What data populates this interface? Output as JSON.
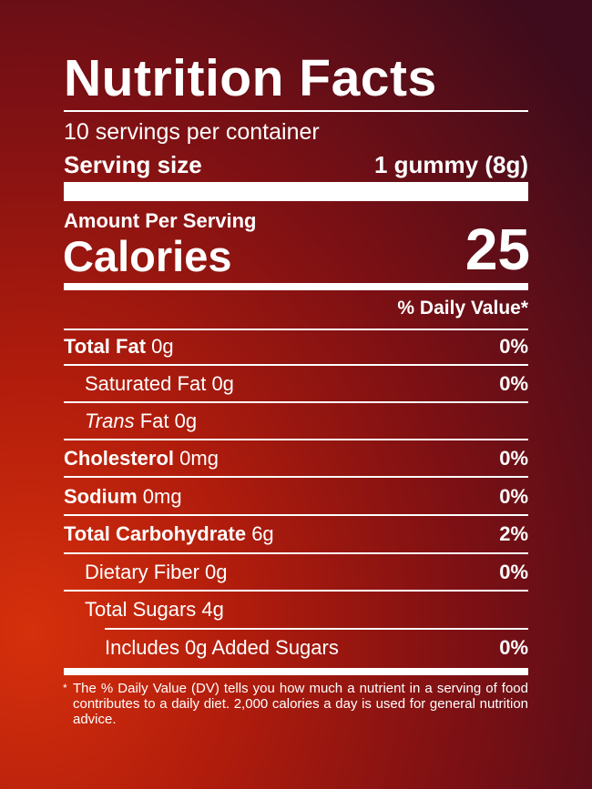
{
  "title": "Nutrition Facts",
  "servings_per_container": "10 servings per container",
  "serving_size_label": "Serving size",
  "serving_size_value": "1 gummy (8g)",
  "amount_per_serving": "Amount Per Serving",
  "calories_label": "Calories",
  "calories_value": "25",
  "daily_value_header": "% Daily Value*",
  "nutrients": [
    {
      "name": "Total Fat",
      "amount": "0g",
      "dv": "0%"
    },
    {
      "name": "Saturated Fat",
      "amount": "0g",
      "dv": "0%"
    },
    {
      "name": "Trans",
      "name_suffix": "Fat",
      "amount": "0g",
      "dv": ""
    },
    {
      "name": "Cholesterol",
      "amount": "0mg",
      "dv": "0%"
    },
    {
      "name": "Sodium",
      "amount": "0mg",
      "dv": "0%"
    },
    {
      "name": "Total Carbohydrate",
      "amount": "6g",
      "dv": "2%"
    },
    {
      "name": "Dietary Fiber",
      "amount": "0g",
      "dv": "0%"
    },
    {
      "name": "Total Sugars",
      "amount": "4g",
      "dv": ""
    },
    {
      "name": "Includes 0g Added Sugars",
      "amount": "",
      "dv": "0%"
    }
  ],
  "footnote_star": "*",
  "footnote": "The % Daily Value (DV) tells you how much a nutrient in a serving of food contributes to a daily diet. 2,000 calories a day is used for general nutrition advice.",
  "colors": {
    "background_bright": "#d6300c",
    "background_dark": "#3e0c1c",
    "text": "#ffffff"
  }
}
